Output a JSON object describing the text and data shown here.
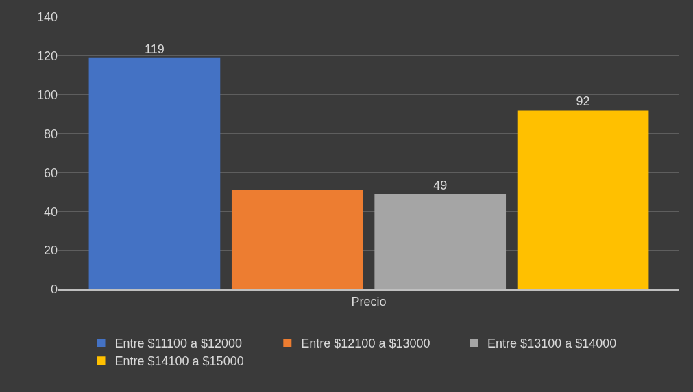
{
  "chart_data": {
    "type": "bar",
    "categories": [
      "Precio"
    ],
    "series": [
      {
        "name": "Entre $11100 a $12000",
        "color": "#4472c4",
        "values": [
          119
        ],
        "value_labels": [
          "119"
        ]
      },
      {
        "name": "Entre $12100 a $13000",
        "color": "#ed7d31",
        "values": [
          51
        ],
        "value_labels": [
          null
        ]
      },
      {
        "name": "Entre $13100 a $14000",
        "color": "#a5a5a5",
        "values": [
          49
        ],
        "value_labels": [
          "49"
        ]
      },
      {
        "name": "Entre $14100 a $15000",
        "color": "#ffc000",
        "values": [
          92
        ],
        "value_labels": [
          "92"
        ]
      }
    ],
    "ylim": [
      0,
      140
    ],
    "yticks": [
      0,
      20,
      40,
      60,
      80,
      100,
      120,
      140
    ],
    "grid": "y",
    "legend": "bottom"
  }
}
